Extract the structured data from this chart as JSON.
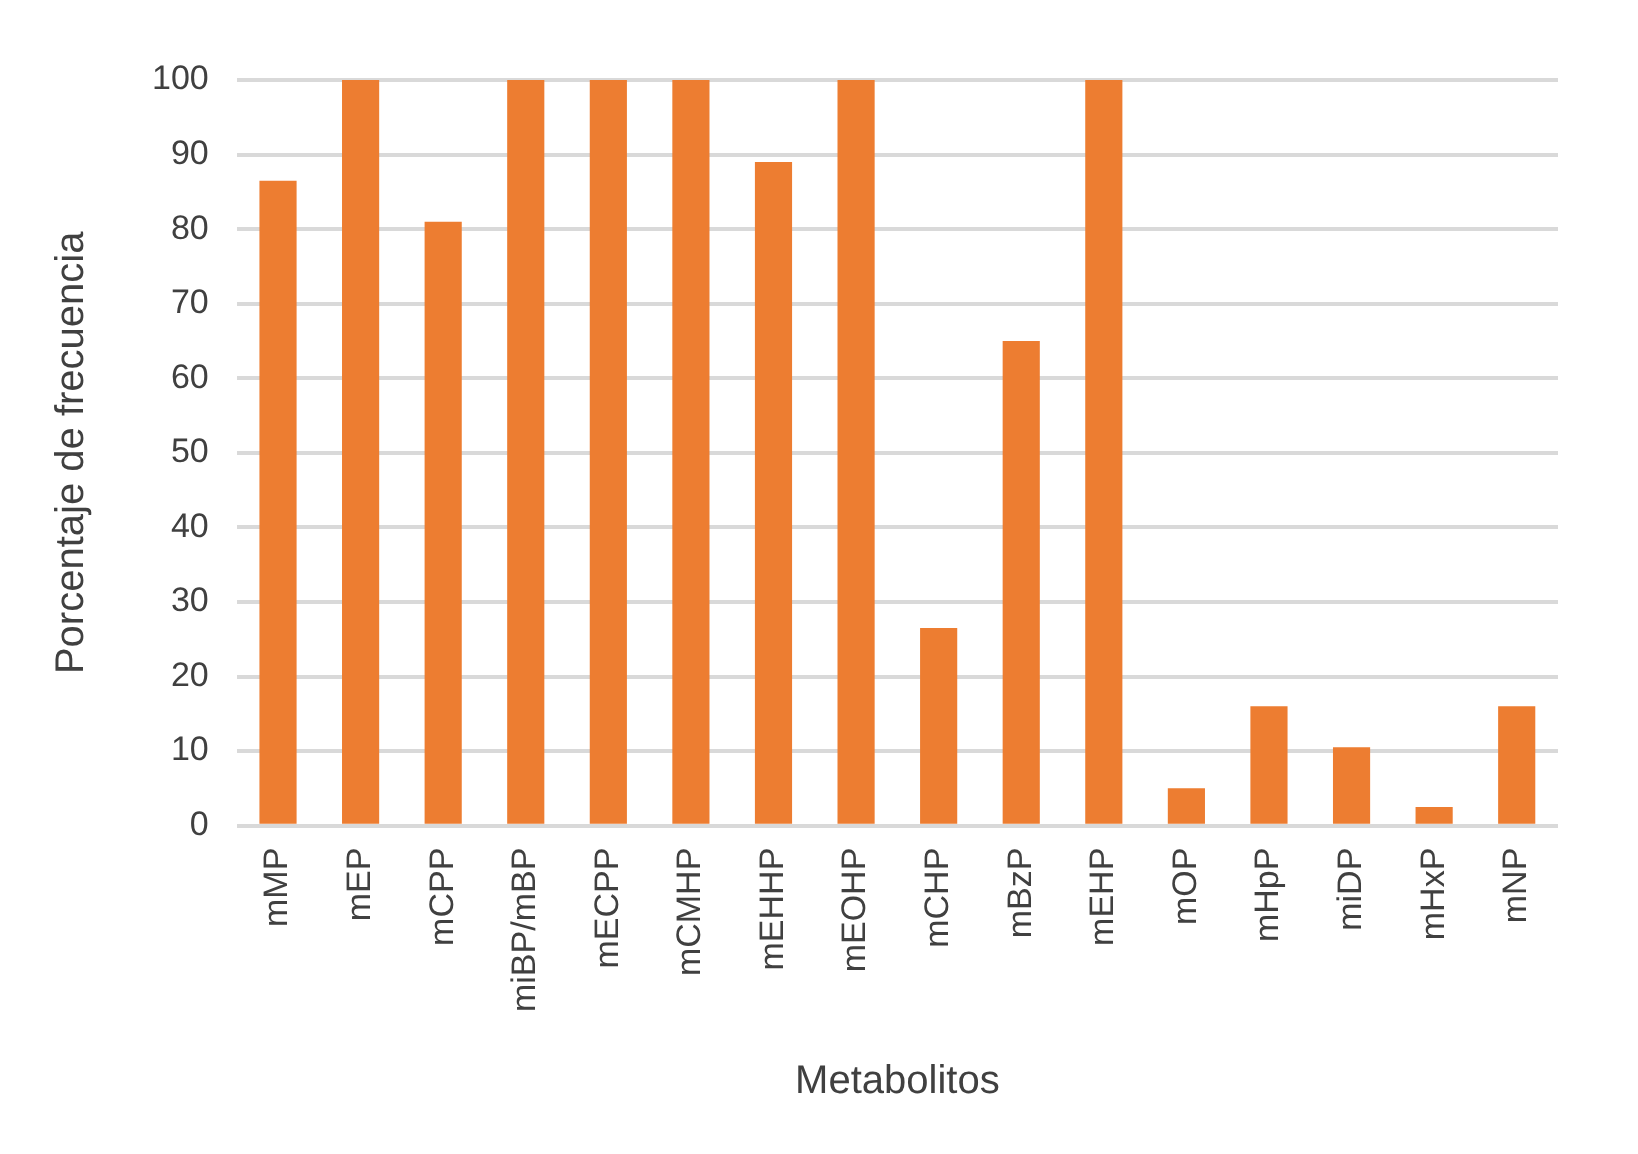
{
  "chart_data": {
    "type": "bar",
    "xlabel": "Metabolitos",
    "ylabel": "Porcentaje de frecuencia",
    "categories": [
      "mMP",
      "mEP",
      "mCPP",
      "miBP/mBP",
      "mECPP",
      "mCMHP",
      "mEHHP",
      "mEOHP",
      "mCHP",
      "mBzP",
      "mEHP",
      "mOP",
      "mHpP",
      "miDP",
      "mHxP",
      "mNP"
    ],
    "values": [
      86.5,
      100,
      81,
      100,
      100,
      100,
      89,
      100,
      26.5,
      65,
      100,
      5,
      16,
      10.5,
      2.5,
      16
    ],
    "color": "#ed7d31",
    "ylim": [
      0,
      100
    ],
    "yticks": [
      0,
      10,
      20,
      30,
      40,
      50,
      60,
      70,
      80,
      90,
      100
    ],
    "grid": "y",
    "legend": false
  }
}
